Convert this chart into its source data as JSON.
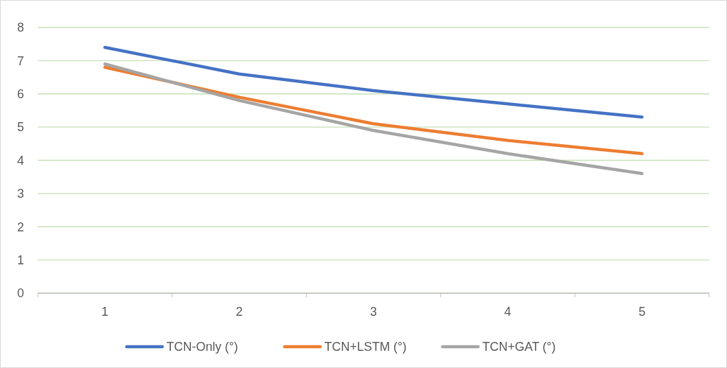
{
  "chart_data": {
    "type": "line",
    "categories": [
      "1",
      "2",
      "3",
      "4",
      "5"
    ],
    "series": [
      {
        "name": "TCN-Only (°)",
        "color": "#4472c4",
        "values": [
          7.4,
          6.6,
          6.1,
          5.7,
          5.3
        ]
      },
      {
        "name": "TCN+LSTM (°)",
        "color": "#ed7d31",
        "values": [
          6.8,
          5.9,
          5.1,
          4.6,
          4.2
        ]
      },
      {
        "name": "TCN+GAT (°)",
        "color": "#a5a5a5",
        "values": [
          6.9,
          5.8,
          4.9,
          4.2,
          3.6
        ]
      }
    ],
    "ylim": [
      0,
      8
    ],
    "yticks": [
      0,
      1,
      2,
      3,
      4,
      5,
      6,
      7,
      8
    ],
    "grid": "y",
    "legend": "bottom",
    "marker": "none",
    "line_style": "solid"
  }
}
